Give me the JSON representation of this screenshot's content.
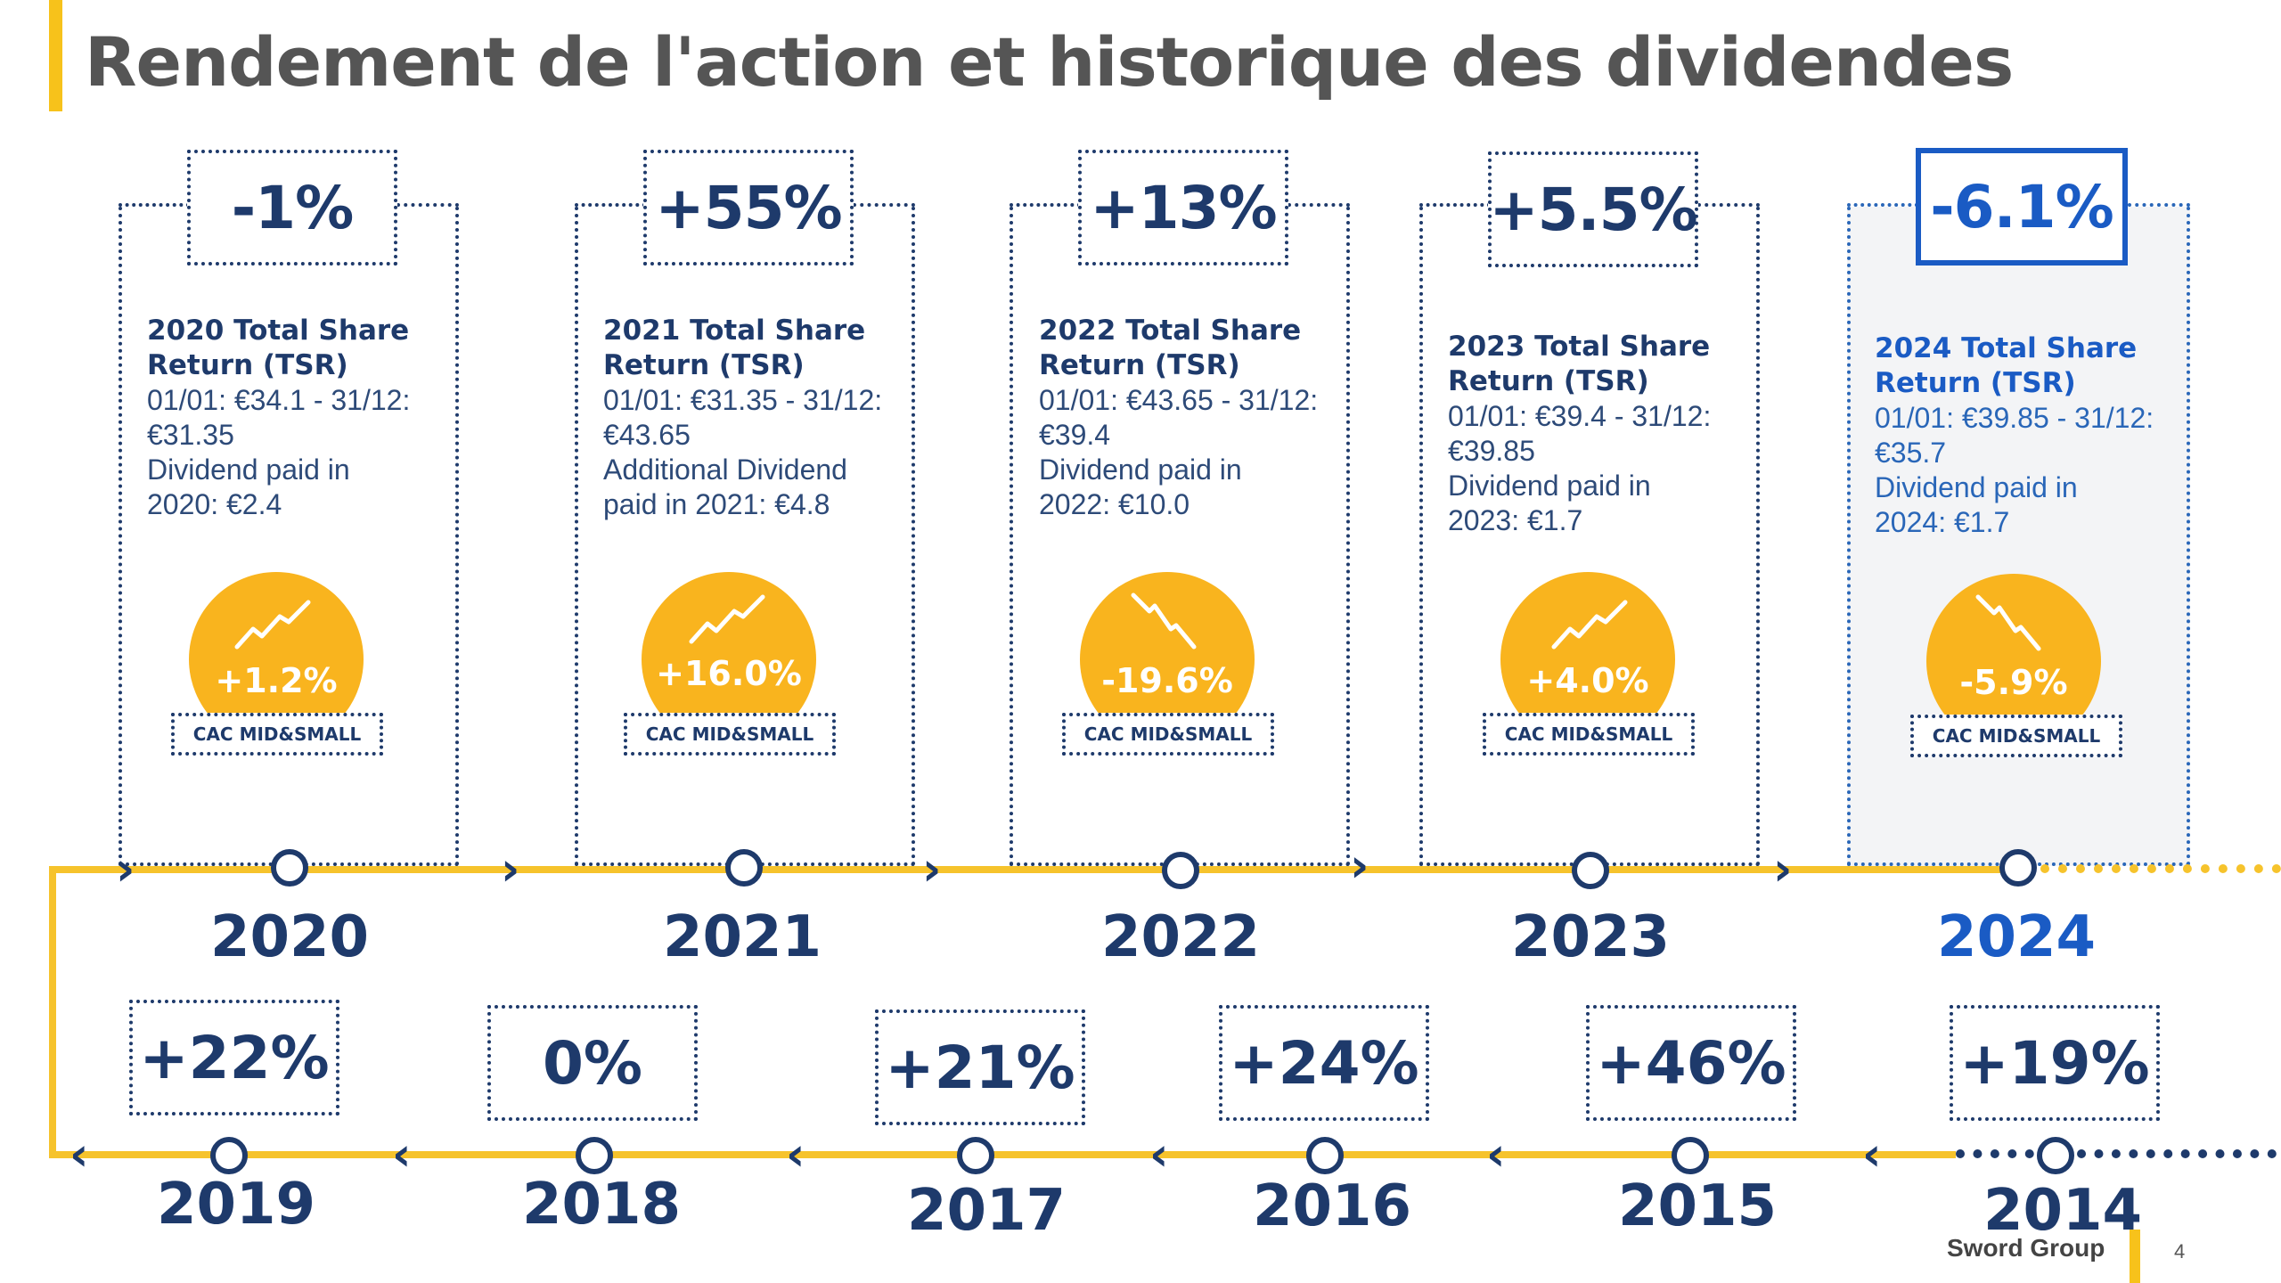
{
  "title": "Rendement de l'action et historique des dividendes",
  "top_row": [
    {
      "year": "2020",
      "tsr": "-1%",
      "heading": "2020 Total Share Return (TSR)",
      "lines": [
        "01/01: €34.1 - 31/12:",
        "€31.35",
        "Dividend paid in",
        "2020: €2.4"
      ],
      "cac": "+1.2%",
      "cac_label": "CAC MID&SMALL",
      "trend": "up"
    },
    {
      "year": "2021",
      "tsr": "+55%",
      "heading": "2021 Total Share Return (TSR)",
      "lines": [
        "01/01: €31.35 - 31/12:",
        "€43.65",
        "Additional Dividend",
        "paid in 2021: €4.8"
      ],
      "cac": "+16.0%",
      "cac_label": "CAC MID&SMALL",
      "trend": "up"
    },
    {
      "year": "2022",
      "tsr": "+13%",
      "heading": "2022 Total Share Return (TSR)",
      "lines": [
        "01/01: €43.65 - 31/12:",
        "€39.4",
        "Dividend paid in",
        "2022: €10.0"
      ],
      "cac": "-19.6%",
      "cac_label": "CAC MID&SMALL",
      "trend": "down"
    },
    {
      "year": "2023",
      "tsr": "+5.5%",
      "heading": "2023 Total Share Return (TSR)",
      "lines": [
        "01/01: €39.4 - 31/12:",
        "€39.85",
        "Dividend paid in",
        "2023: €1.7"
      ],
      "cac": "+4.0%",
      "cac_label": "CAC MID&SMALL",
      "trend": "up"
    },
    {
      "year": "2024",
      "tsr": "-6.1%",
      "heading": "2024 Total Share Return (TSR)",
      "lines": [
        "01/01: €39.85 - 31/12:",
        "€35.7",
        "Dividend paid in",
        "2024: €1.7"
      ],
      "cac": "-5.9%",
      "cac_label": "CAC MID&SMALL",
      "trend": "down"
    }
  ],
  "bottom_row": [
    {
      "year": "2019",
      "tsr": "+22%"
    },
    {
      "year": "2018",
      "tsr": "0%"
    },
    {
      "year": "2017",
      "tsr": "+21%"
    },
    {
      "year": "2016",
      "tsr": "+24%"
    },
    {
      "year": "2015",
      "tsr": "+46%"
    },
    {
      "year": "2014",
      "tsr": "+19%"
    }
  ],
  "footer": {
    "company": "Sword Group",
    "page": "4"
  },
  "colors": {
    "navy": "#1e3a6b",
    "highlight_blue": "#1a5bc4",
    "yellow": "#f6c32c",
    "orange_circle": "#f9b41e"
  },
  "icons": {
    "up": "trend-up-icon",
    "down": "trend-down-icon",
    "arrow_right": "chevron-right-icon",
    "arrow_left": "chevron-left-icon"
  }
}
